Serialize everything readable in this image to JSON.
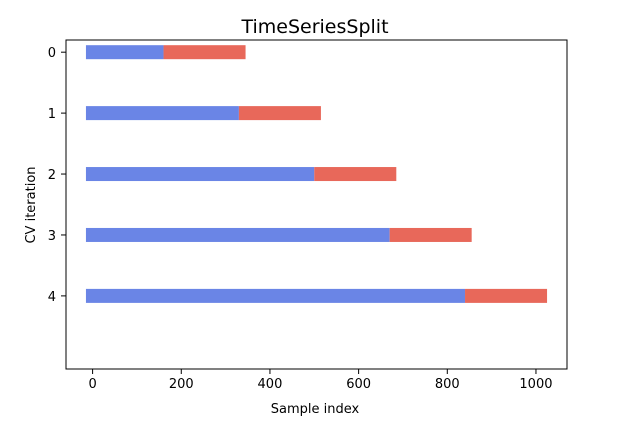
{
  "chart_data": {
    "type": "bar",
    "orientation": "horizontal",
    "title": "TimeSeriesSplit",
    "xlabel": "Sample index",
    "ylabel": "CV iteration",
    "xlim": [
      -60,
      1070
    ],
    "ylim": [
      5.2,
      -0.2
    ],
    "xticks": [
      0,
      200,
      400,
      600,
      800,
      1000
    ],
    "yticks": [
      0,
      1,
      2,
      3,
      4
    ],
    "grid": false,
    "colors": {
      "train": "#6a85e6",
      "test": "#e8685a"
    },
    "series": [
      {
        "iteration": 0,
        "train": [
          -15,
          160
        ],
        "test": [
          160,
          345
        ]
      },
      {
        "iteration": 1,
        "train": [
          -15,
          330
        ],
        "test": [
          330,
          515
        ]
      },
      {
        "iteration": 2,
        "train": [
          -15,
          500
        ],
        "test": [
          500,
          685
        ]
      },
      {
        "iteration": 3,
        "train": [
          -15,
          670
        ],
        "test": [
          670,
          855
        ]
      },
      {
        "iteration": 4,
        "train": [
          -15,
          840
        ],
        "test": [
          840,
          1025
        ]
      }
    ]
  }
}
